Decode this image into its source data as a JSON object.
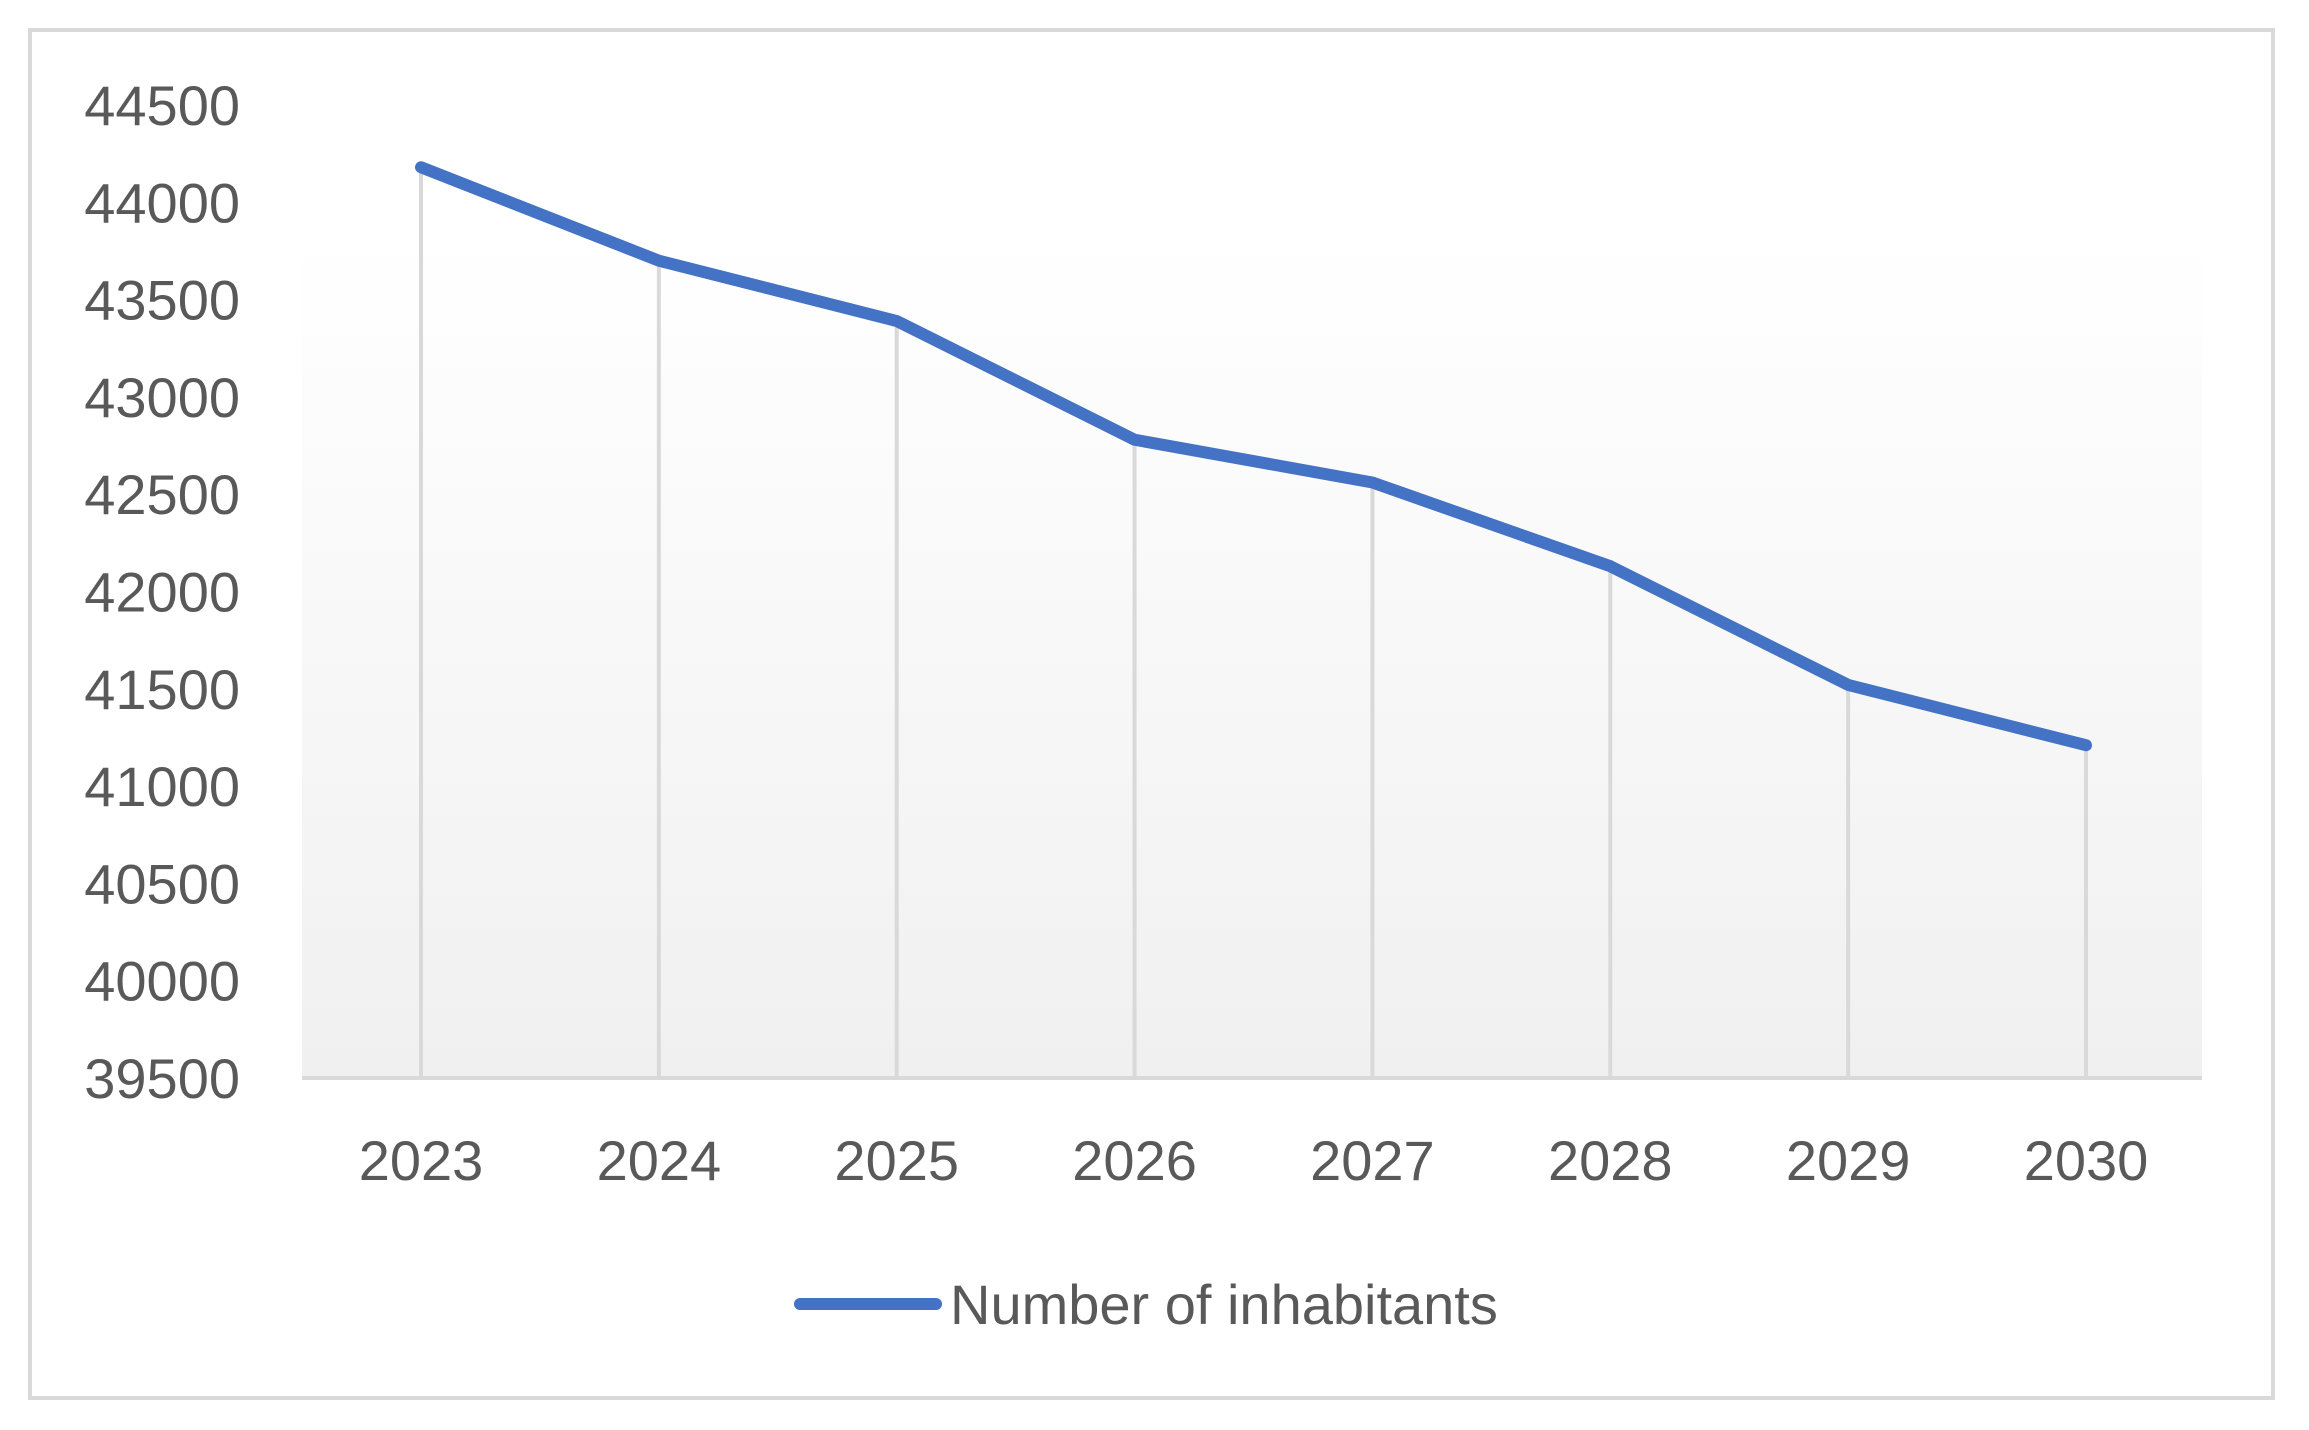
{
  "chart_data": {
    "type": "line",
    "title": "",
    "xlabel": "",
    "ylabel": "",
    "categories": [
      "2023",
      "2024",
      "2025",
      "2026",
      "2027",
      "2028",
      "2029",
      "2030"
    ],
    "series": [
      {
        "name": "Number of inhabitants",
        "values": [
          44180,
          43700,
          43390,
          42780,
          42560,
          42130,
          41520,
          41210
        ],
        "color": "#4472c4"
      }
    ],
    "ylim": [
      39500,
      44500
    ],
    "yticks": [
      "39500",
      "40000",
      "40500",
      "41000",
      "41500",
      "42000",
      "42500",
      "43000",
      "43500",
      "44000",
      "44500"
    ],
    "grid": "vertical drop lines at each category",
    "legend": "bottom-center",
    "colors": {
      "line": "#4472c4",
      "gridline": "#d9d9d9",
      "axis": "#d9d9d9",
      "text": "#595959",
      "border": "#d9d9d9"
    }
  }
}
